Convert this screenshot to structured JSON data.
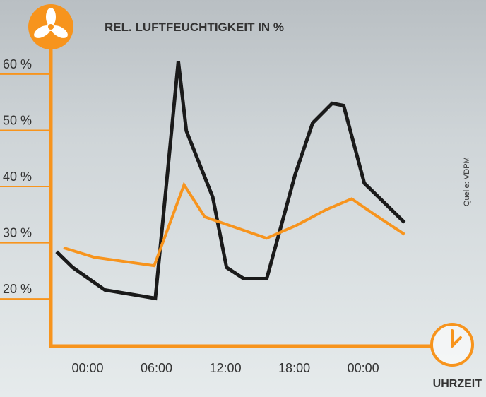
{
  "chart_data": {
    "type": "line",
    "title": "REL. LUFTFEUCHTIGKEIT IN %",
    "x_label": "UHRZEIT",
    "source": "Quelle: VDPM",
    "axis_color": "#f7941d",
    "series": [
      {
        "color": "#1a1a1a",
        "x": [
          -2.7,
          -1.3,
          1.5,
          5.9,
          7.9,
          8.6,
          10.9,
          12.1,
          13.6,
          15.6,
          18.1,
          19.6,
          21.3,
          22.3,
          24.1,
          27.6
        ],
        "values": [
          28.4,
          25.6,
          21.6,
          20.1,
          62.3,
          49.9,
          38.1,
          25.6,
          23.6,
          23.6,
          42.3,
          51.3,
          54.8,
          54.4,
          40.6,
          33.6
        ]
      },
      {
        "color": "#f7941d",
        "x": [
          -2.1,
          0.6,
          5.8,
          8.4,
          10.2,
          15.6,
          18.2,
          20.8,
          23.0,
          25.0,
          27.6
        ],
        "values": [
          29.1,
          27.4,
          25.9,
          40.3,
          34.6,
          30.8,
          33.1,
          35.9,
          37.8,
          35.0,
          31.5
        ]
      }
    ],
    "xlim": [
      -3.2,
      29.9
    ],
    "xticks": [
      {
        "value": 0,
        "label": "00:00"
      },
      {
        "value": 6,
        "label": "06:00"
      },
      {
        "value": 12,
        "label": "12:00"
      },
      {
        "value": 18,
        "label": "18:00"
      },
      {
        "value": 24,
        "label": "00:00"
      }
    ],
    "ylim": [
      11.6,
      66.9
    ],
    "yticks": [
      {
        "value": 20,
        "label": "20 %"
      },
      {
        "value": 30,
        "label": "30 %"
      },
      {
        "value": 40,
        "label": "40 %"
      },
      {
        "value": 50,
        "label": "50 %"
      },
      {
        "value": 60,
        "label": "60 %"
      }
    ]
  }
}
